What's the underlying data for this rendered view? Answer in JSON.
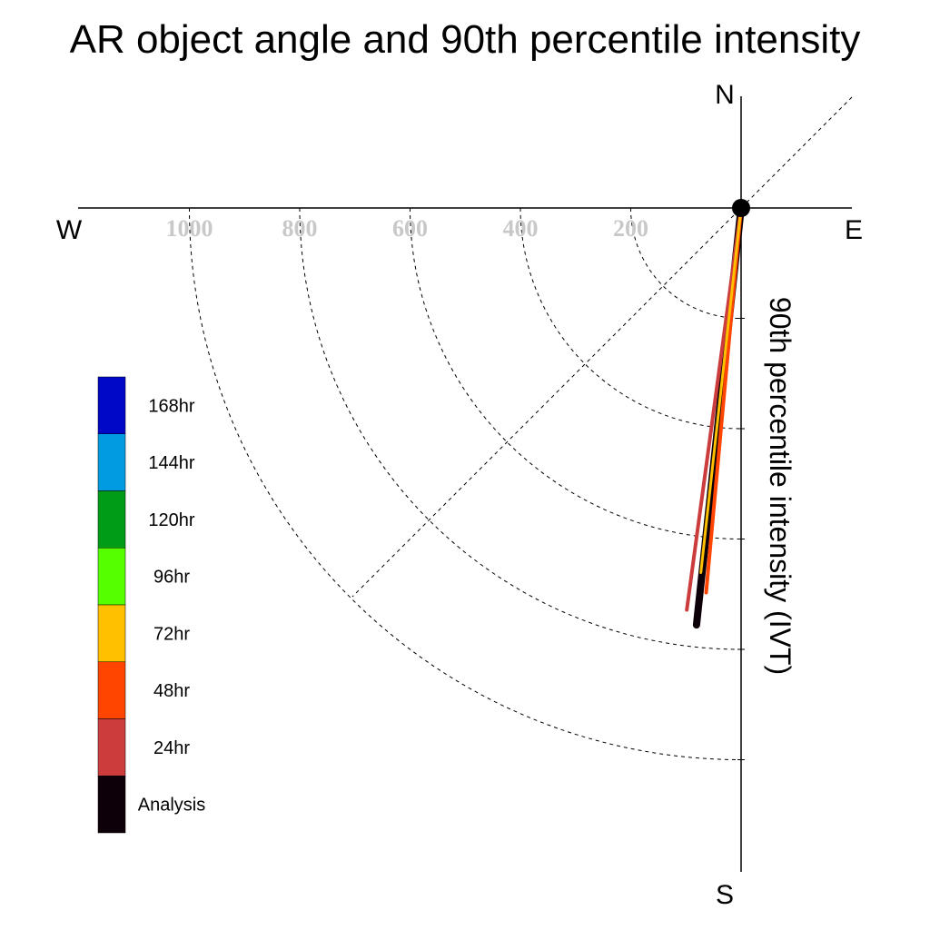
{
  "chart_data": {
    "type": "polar",
    "title": "AR object angle and 90th percentile intensity",
    "radial_label": "90th percentile intensity (IVT)",
    "compass": {
      "north": "N",
      "east": "E",
      "south": "S",
      "west": "W"
    },
    "radial_ticks": [
      200,
      400,
      600,
      800,
      1000
    ],
    "radial_tick_labels": [
      "200",
      "400",
      "600",
      "800",
      "1000"
    ],
    "radial_max": 1200,
    "angle_reference": "degrees clockwise from South, toward West",
    "series": [
      {
        "name": "Analysis",
        "color": "#0d0008",
        "angle_deg": 6.1,
        "intensity": 760
      },
      {
        "name": "24hr",
        "color": "#cc3c3c",
        "angle_deg": 7.7,
        "intensity": 735
      },
      {
        "name": "48hr",
        "color": "#ff4500",
        "angle_deg": 5.2,
        "intensity": 700
      },
      {
        "name": "72hr",
        "color": "#ffc000",
        "angle_deg": 6.3,
        "intensity": 665
      }
    ],
    "legend": [
      {
        "label": "168hr",
        "color": "#0008c8"
      },
      {
        "label": "144hr",
        "color": "#009be1"
      },
      {
        "label": "120hr",
        "color": "#009c17"
      },
      {
        "label": "96hr",
        "color": "#55ff00"
      },
      {
        "label": "72hr",
        "color": "#ffc000"
      },
      {
        "label": "48hr",
        "color": "#ff4500"
      },
      {
        "label": "24hr",
        "color": "#cc3c3c"
      },
      {
        "label": "Analysis",
        "color": "#0d0008"
      }
    ]
  }
}
